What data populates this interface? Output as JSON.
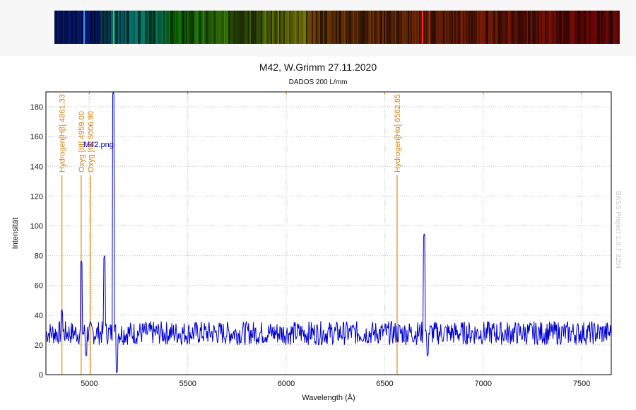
{
  "header": {
    "title": "M42, W.Grimm  27.11.2020",
    "subtitle": "DADOS 200 L/mm"
  },
  "watermark": "BASS Project 1.9.7  32bit",
  "colors": {
    "spectrum": "#0000d0",
    "emission_lines": "#e08a14",
    "grid": "#bdbdbd",
    "frame": "#000000"
  },
  "chart_data": {
    "type": "line",
    "title": "M42, W.Grimm  27.11.2020",
    "subtitle": "DADOS 200 L/mm",
    "xlabel": "Wavelength (Å)",
    "ylabel": "Intensität",
    "xlim": [
      4780,
      7650
    ],
    "ylim": [
      0,
      190
    ],
    "xticks": [
      5000,
      5500,
      6000,
      6500,
      7000,
      7500
    ],
    "yticks": [
      0,
      20,
      40,
      60,
      80,
      100,
      120,
      140,
      160,
      180
    ],
    "grid": true,
    "series": [
      {
        "name": "M42.png",
        "color": "#0000d0",
        "baseline": 28,
        "noise": 5,
        "peaks": [
          {
            "x": 4861,
            "y": 44
          },
          {
            "x": 4959,
            "y": 77
          },
          {
            "x": 4985,
            "y": 12
          },
          {
            "x": 5077,
            "y": 80
          },
          {
            "x": 5122,
            "y": 190
          },
          {
            "x": 5140,
            "y": 1
          },
          {
            "x": 6701,
            "y": 95
          },
          {
            "x": 6717,
            "y": 12
          }
        ]
      }
    ],
    "emission_lines": [
      {
        "x": 4861.33,
        "label": "Hydrogen[Hβ] 4861.33"
      },
      {
        "x": 4959.0,
        "label": "Oxyg [III] 4959.00"
      },
      {
        "x": 5006.9,
        "label": "Oxyg [III] 5006.90"
      },
      {
        "x": 6562.85,
        "label": "Hydrogen[Hα] 6562.85"
      }
    ]
  }
}
